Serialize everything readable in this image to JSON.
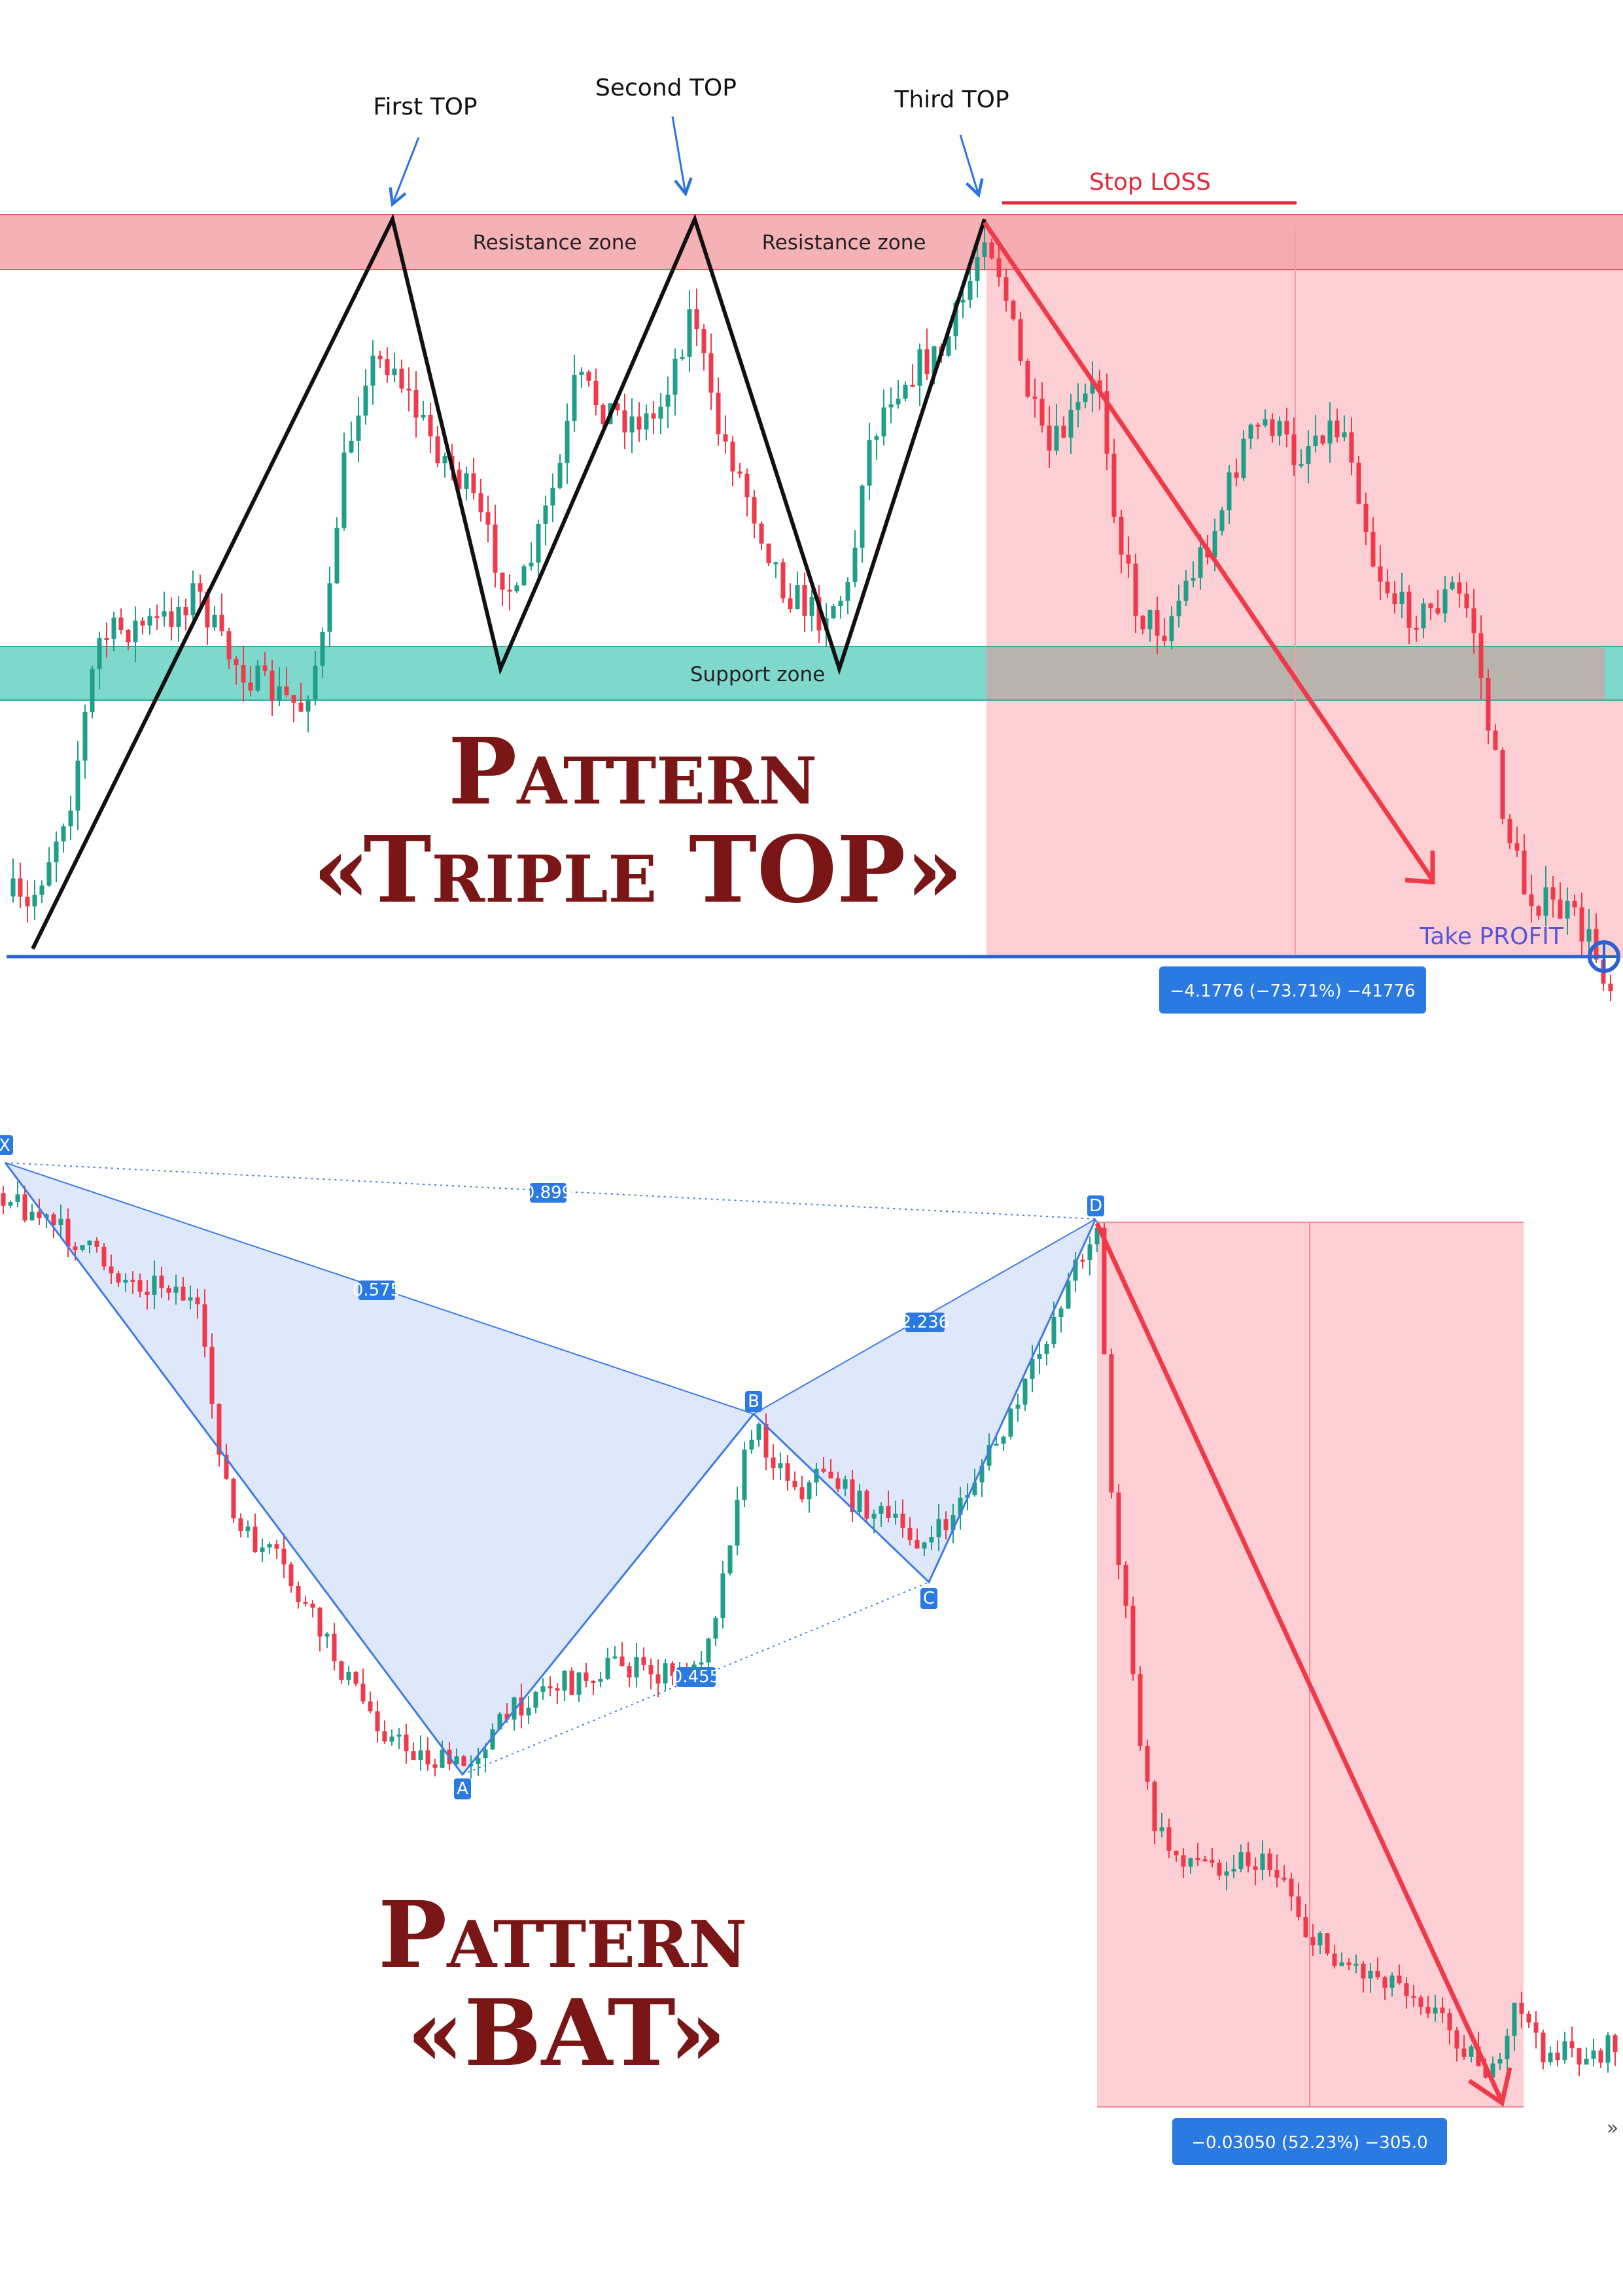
{
  "colors": {
    "bull": "#1f9e89",
    "bear": "#ee3a4a",
    "resistance_zone": "#f3a5a9",
    "support_zone": "#7fd8cc",
    "short_zone": "#fbcfd3",
    "pattern_line": "#111111",
    "arrow_annot": "#2b74e0",
    "target_line": "#2c63d4",
    "trade_arrow": "#f03a4a",
    "bat_fill": "#dbe6fa",
    "bat_line": "#3f7be4",
    "badge_bg": "#2a7ae2",
    "title": "#7a1616"
  },
  "triple_top": {
    "annotations": {
      "first_top": "First TOP",
      "second_top": "Second TOP",
      "third_top": "Third TOP",
      "stop_loss": "Stop LOSS",
      "take_profit": "Take PROFIT"
    },
    "zones": {
      "resistance_1": "Resistance zone",
      "resistance_2": "Resistance zone",
      "support": "Support zone"
    },
    "measure": "−4.1776 (−73.71%) −41776",
    "title_line1": "Pattern",
    "title_line2": "«Triple TOP»"
  },
  "bat": {
    "point_labels": [
      "X",
      "A",
      "B",
      "C",
      "D"
    ],
    "ratios": {
      "xa_d": "0.899",
      "xa_b": "0.575",
      "ab_d": "2.236",
      "ab_c": "0.455"
    },
    "measure": "−0.03050 (52.23%) −305.0",
    "title_line1": "Pattern",
    "title_line2": "«BAT»"
  },
  "chart_data": [
    {
      "type": "candlestick",
      "pattern": "Triple TOP",
      "tops": [
        "First TOP",
        "Second TOP",
        "Third TOP"
      ],
      "zones": [
        "Resistance zone",
        "Resistance zone",
        "Support zone"
      ],
      "trade": {
        "direction": "short",
        "stop": "Stop LOSS",
        "target": "Take PROFIT",
        "change": -4.1776,
        "change_pct": -73.71,
        "change_ticks": -41776
      }
    },
    {
      "type": "candlestick",
      "pattern": "BAT",
      "points": [
        "X",
        "A",
        "B",
        "C",
        "D"
      ],
      "ratios": {
        "xa_d": 0.899,
        "xa_b": 0.575,
        "ab_d": 2.236,
        "ab_c": 0.455
      },
      "trade": {
        "direction": "short",
        "change": -0.0305,
        "change_pct": 52.23,
        "change_ticks": -305.0
      }
    }
  ]
}
